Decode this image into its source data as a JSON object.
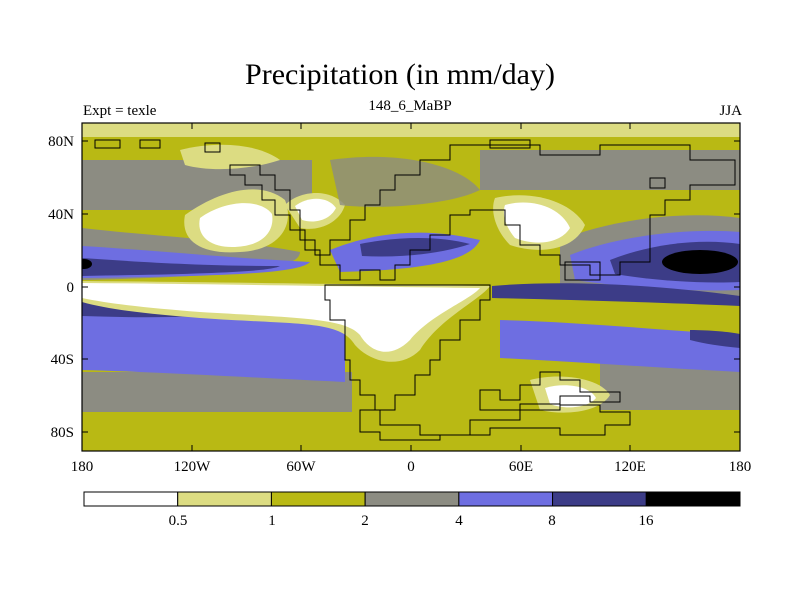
{
  "title": "Precipitation (in mm/day)",
  "subtitle_left": "Expt = texle",
  "subtitle_center": "148_6_MaBP",
  "subtitle_right": "JJA",
  "lat_labels": [
    "80N",
    "40N",
    "0",
    "40S",
    "80S"
  ],
  "lon_labels": [
    "180",
    "120W",
    "60W",
    "0",
    "60E",
    "120E",
    "180"
  ],
  "colorbar": {
    "colors": [
      "#ffffff",
      "#dcdc82",
      "#b9b914",
      "#8c8c82",
      "#6e6ee1",
      "#3c3c87",
      "#000000"
    ],
    "labels": [
      "0.5",
      "1",
      "2",
      "4",
      "8",
      "16"
    ]
  },
  "colors": {
    "c0": "#ffffff",
    "c1": "#dcdc82",
    "c2": "#b9b914",
    "c3": "#8c8c82",
    "c4": "#6e6ee1",
    "c5": "#3c3c87",
    "c6": "#000000"
  }
}
